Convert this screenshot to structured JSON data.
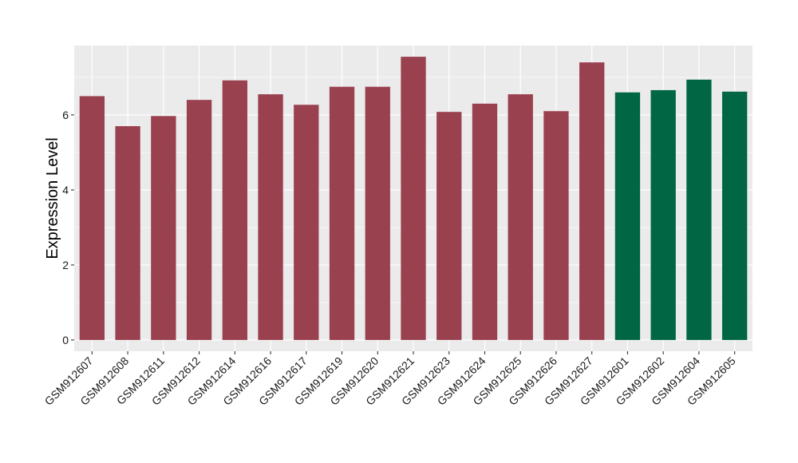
{
  "chart_data": {
    "type": "bar",
    "title": "",
    "xlabel": "",
    "ylabel": "Expression Level",
    "ylim": [
      -0.3,
      7.85
    ],
    "yticks": [
      0,
      2,
      4,
      6
    ],
    "grid": true,
    "categories": [
      "GSM912607",
      "GSM912608",
      "GSM912611",
      "GSM912612",
      "GSM912614",
      "GSM912616",
      "GSM912617",
      "GSM912619",
      "GSM912620",
      "GSM912621",
      "GSM912623",
      "GSM912624",
      "GSM912625",
      "GSM912626",
      "GSM912627",
      "GSM912601",
      "GSM912602",
      "GSM912604",
      "GSM912605"
    ],
    "values": [
      6.5,
      5.7,
      5.97,
      6.4,
      6.92,
      6.55,
      6.27,
      6.75,
      6.75,
      7.55,
      6.08,
      6.3,
      6.55,
      6.1,
      7.4,
      6.6,
      6.66,
      6.94,
      6.62
    ],
    "bar_colors": [
      "#9a4150",
      "#9a4150",
      "#9a4150",
      "#9a4150",
      "#9a4150",
      "#9a4150",
      "#9a4150",
      "#9a4150",
      "#9a4150",
      "#9a4150",
      "#9a4150",
      "#9a4150",
      "#9a4150",
      "#9a4150",
      "#9a4150",
      "#006644",
      "#006644",
      "#006644",
      "#006644"
    ],
    "panel_background": "#ebebeb",
    "gridline_color": "#ffffff"
  }
}
